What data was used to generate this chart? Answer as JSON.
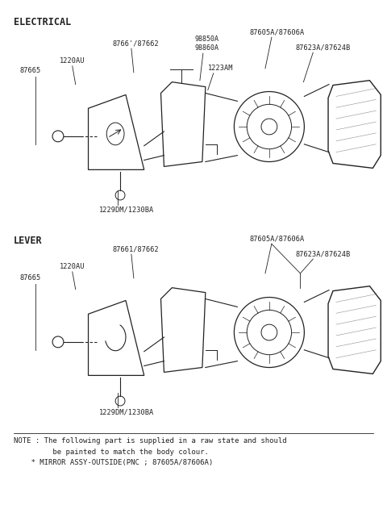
{
  "fig_width": 4.8,
  "fig_height": 6.57,
  "dpi": 100,
  "bg_color": "#ffffff",
  "section1_label": "ELECTRICAL",
  "section2_label": "LEVER",
  "note_text": "NOTE : The following part is supplied in a raw state and should\n         be painted to match the body colour.\n    ★ MIRROR ASSY-OUTSIDE(PNC ; 87605A/87606A)",
  "line_color": "#222222",
  "text_color": "#222222",
  "label_fontsize": 6.2,
  "section_fontsize": 8.5,
  "note_fontsize": 6.5
}
